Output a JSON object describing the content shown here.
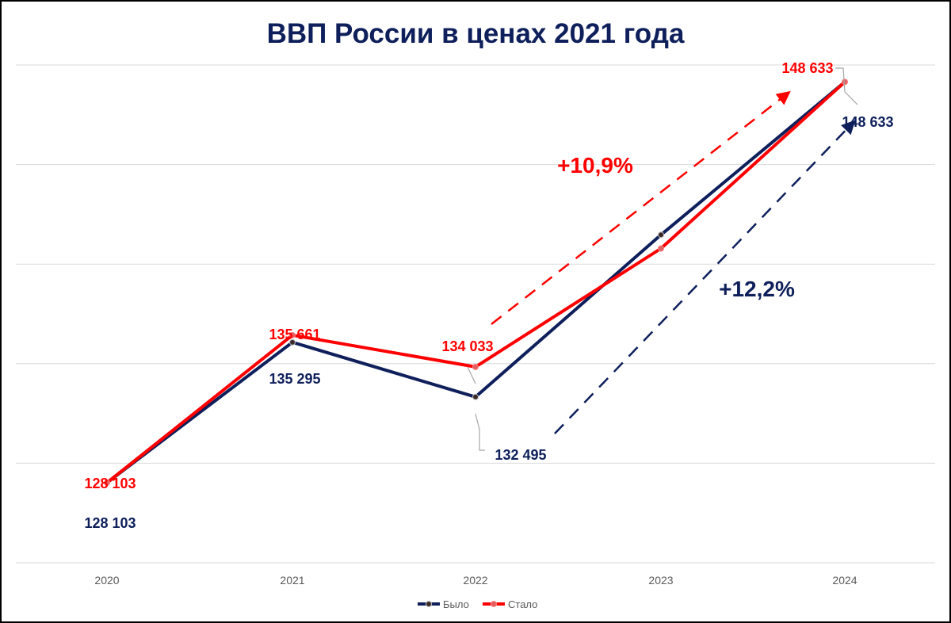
{
  "chart_data": {
    "type": "line",
    "title": "ВВП России в ценах 2021 года",
    "categories": [
      "2020",
      "2021",
      "2022",
      "2023",
      "2024"
    ],
    "series": [
      {
        "name": "Было",
        "color": "#0E1F5B",
        "values": [
          128103,
          135295,
          132495,
          140800,
          148633
        ],
        "labels": [
          "128 103",
          "135 295",
          "132 495",
          "",
          "148 633"
        ]
      },
      {
        "name": "Стало",
        "color": "#FF0000",
        "values": [
          128103,
          135661,
          134033,
          140100,
          148633
        ],
        "labels": [
          "128 103",
          "135 661",
          "134 033",
          "",
          "148 633"
        ]
      }
    ],
    "annotations": [
      {
        "text": "+10,9%",
        "color": "#FF0000"
      },
      {
        "text": "+12,2%",
        "color": "#0E1F5B"
      }
    ],
    "ylim": [
      124000,
      149500
    ],
    "grid": true,
    "legend": "bottom"
  }
}
